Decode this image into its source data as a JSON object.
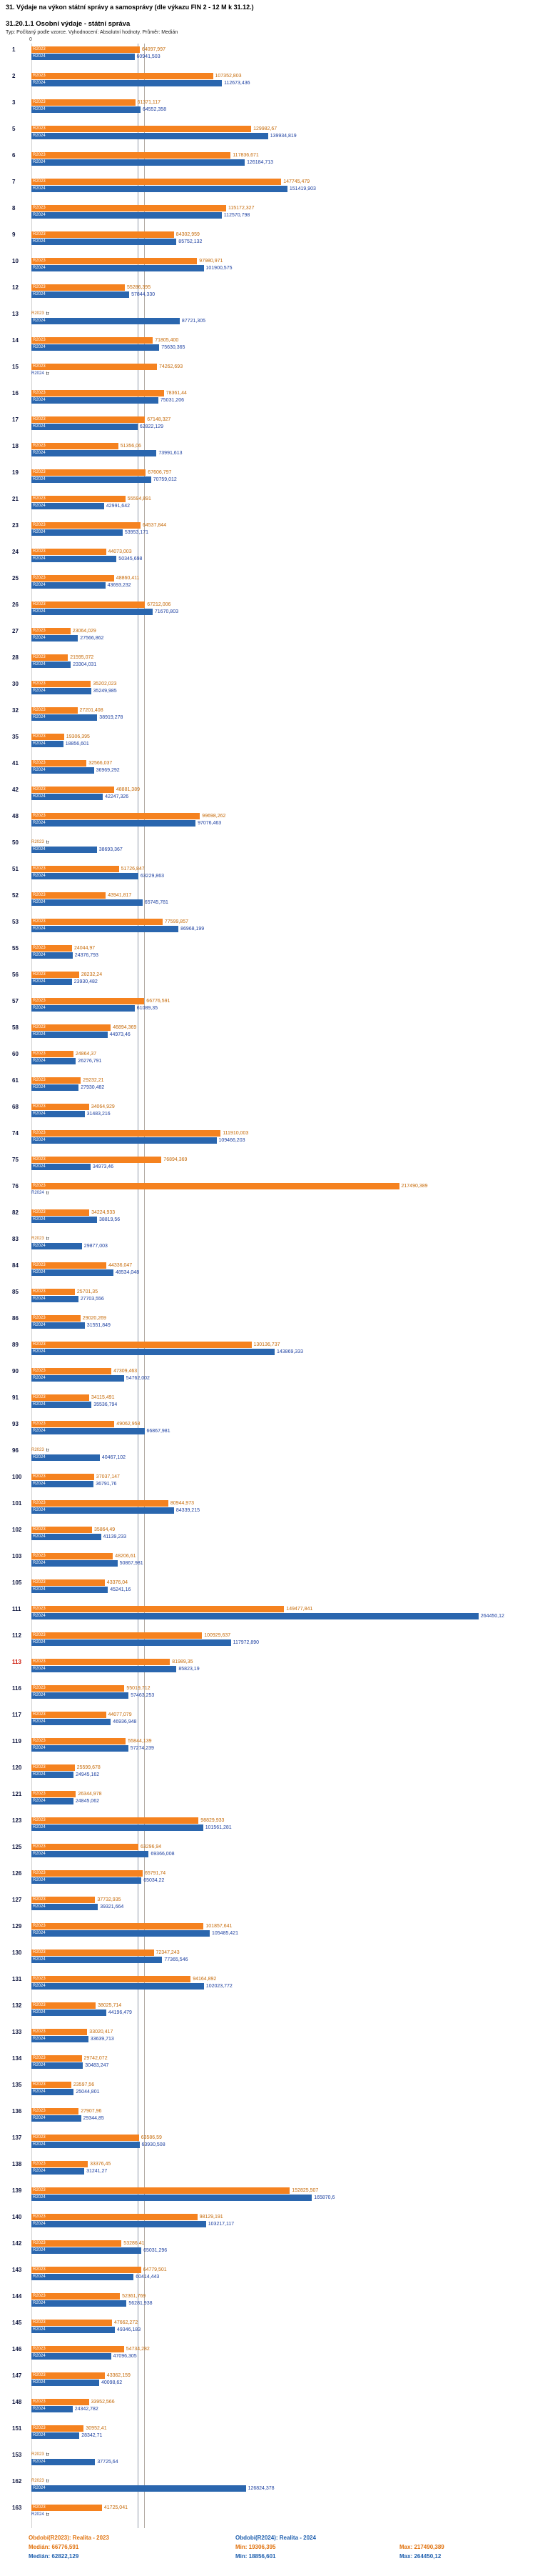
{
  "meta": {
    "title": "31. Výdaje na výkon státní správy a samosprávy (dle výkazu FIN 2 - 12 M k 31.12.)",
    "subtitle": "31.20.1.1 Osobní výdaje - státní správa",
    "note": "Typ: Počítaný podle vzorce. Vyhodnocení: Absolutní hodnoty. Průměr: Medián"
  },
  "colors": {
    "r2023_bar": "#f5821f",
    "r2024_bar": "#2a66ae",
    "r2023_text": "#c66a08",
    "r2024_text": "#1c3fa0",
    "highlighted_row_number": "#cc1100"
  },
  "footer": {
    "r2023": {
      "period": "Období(R2023): Realita - 2023",
      "median": "Medián: 66776,591",
      "min": "Min: 19306,395",
      "max": "Max: 217490,389"
    },
    "r2024": {
      "period": "Období(R2024): Realita - 2024",
      "median": "Medián: 62822,129",
      "min": "Min: 18856,601",
      "max": "Max: 264450,12"
    }
  },
  "chart_data": {
    "type": "bar",
    "orientation": "horizontal",
    "missing_label": "tr",
    "axis": {
      "zero_label": "0",
      "max": 270000
    },
    "highlighted_categories": [
      "113"
    ],
    "reference_lines": [
      {
        "name": "median-line-r2023",
        "value": "66776,591"
      },
      {
        "name": "median-line-r2024",
        "value": "62822,129"
      }
    ],
    "categories": [
      "1",
      "2",
      "3",
      "5",
      "6",
      "7",
      "8",
      "9",
      "10",
      "12",
      "13",
      "14",
      "15",
      "16",
      "17",
      "18",
      "19",
      "21",
      "23",
      "24",
      "25",
      "26",
      "27",
      "28",
      "30",
      "32",
      "35",
      "41",
      "42",
      "48",
      "50",
      "51",
      "52",
      "53",
      "55",
      "56",
      "57",
      "58",
      "60",
      "61",
      "68",
      "74",
      "75",
      "76",
      "82",
      "83",
      "84",
      "85",
      "86",
      "89",
      "90",
      "91",
      "93",
      "96",
      "100",
      "101",
      "102",
      "103",
      "105",
      "111",
      "112",
      "113",
      "116",
      "117",
      "119",
      "120",
      "121",
      "123",
      "125",
      "126",
      "127",
      "129",
      "130",
      "131",
      "132",
      "133",
      "134",
      "135",
      "136",
      "137",
      "138",
      "139",
      "140",
      "142",
      "143",
      "144",
      "145",
      "146",
      "147",
      "148",
      "151",
      "153",
      "162",
      "163"
    ],
    "series": [
      {
        "name": "R2023",
        "labels": [
          "64097,997",
          "107352,803",
          "61371,117",
          "129982,67",
          "117836,671",
          "147745,479",
          "115172,327",
          "84302,959",
          "97980,971",
          "55286,395",
          null,
          "71805,400",
          "74262,693",
          "78361,44",
          "67148,327",
          "51356,06",
          "67606,797",
          "55594,891",
          "64537,844",
          "44073,003",
          "48860,411",
          "67212,006",
          "23064,029",
          "21595,072",
          "35202,023",
          "27201,408",
          "19306,395",
          "32566,037",
          "48881,389",
          "99698,262",
          null,
          "51726,847",
          "43941,817",
          "77599,857",
          "24044,97",
          "28232,24",
          "66776,591",
          "46894,369",
          "24864,37",
          "29232,21",
          "34064,929",
          "111910,003",
          "76894,369",
          "217490,389",
          "34224,933",
          null,
          "44336,047",
          "25701,35",
          "29020,269",
          "130136,737",
          "47309,463",
          "34115,491",
          "49062,958",
          null,
          "37037,147",
          "80944,973",
          "35864,49",
          "48206,61",
          "43376,04",
          "149477,841",
          "100929,637",
          "81989,35",
          "55019,712",
          "44077,079",
          "55844,139",
          "25599,678",
          "26344,978",
          "98829,933",
          "63296,94",
          "65791,74",
          "37732,935",
          "101857,641",
          "72347,243",
          "94164,892",
          "38025,714",
          "33020,417",
          "29742,072",
          "23597,56",
          "27907,96",
          "63586,59",
          "33376,45",
          "152825,507",
          "98129,191",
          "53286,41",
          "64779,501",
          "52361,769",
          "47662,272",
          "54734,282",
          "43362,159",
          "33952,566",
          "30952,41",
          null,
          null,
          "41725,041"
        ]
      },
      {
        "name": "R2024",
        "labels": [
          "60941,503",
          "112673,436",
          "64552,358",
          "139934,819",
          "126184,713",
          "151419,903",
          "112570,798",
          "85752,132",
          "101900,575",
          "57844,330",
          "87721,305",
          "75630,365",
          null,
          "75031,206",
          "62822,129",
          "73991,613",
          "70759,012",
          "42991,642",
          "53953,171",
          "50345,698",
          "43693,232",
          "71670,803",
          "27566,862",
          "23304,031",
          "35249,985",
          "38919,278",
          "18856,601",
          "36969,292",
          "42247,326",
          "97076,463",
          "38693,367",
          "63229,863",
          "65745,781",
          "86968,199",
          "24376,793",
          "23930,482",
          "61089,35",
          "44973,46",
          "26276,791",
          "27930,482",
          "31483,216",
          "109466,203",
          "34973,46",
          null,
          "38819,56",
          "29877,003",
          "48534,048",
          "27703,556",
          "31551,849",
          "143869,333",
          "54762,002",
          "35536,794",
          "66867,981",
          "40467,102",
          "36791,76",
          "84339,215",
          "41139,233",
          "50867,981",
          "45241,16",
          "264450,12",
          "117972,890",
          "85823,19",
          "57463,253",
          "46936,948",
          "57274,239",
          "24945,162",
          "24845,062",
          "101561,281",
          "69366,008",
          "65034,22",
          "39321,664",
          "105485,421",
          "77365,546",
          "102023,772",
          "44196,479",
          "33639,713",
          "30483,247",
          "25044,801",
          "29344,85",
          "63930,508",
          "31241,27",
          "165870,6",
          "103217,117",
          "65031,296",
          "60414,443",
          "56281,938",
          "49346,183",
          "47096,305",
          "40098,62",
          "24342,782",
          "28342,71",
          "37725,64",
          "126824,378",
          null
        ]
      }
    ]
  }
}
